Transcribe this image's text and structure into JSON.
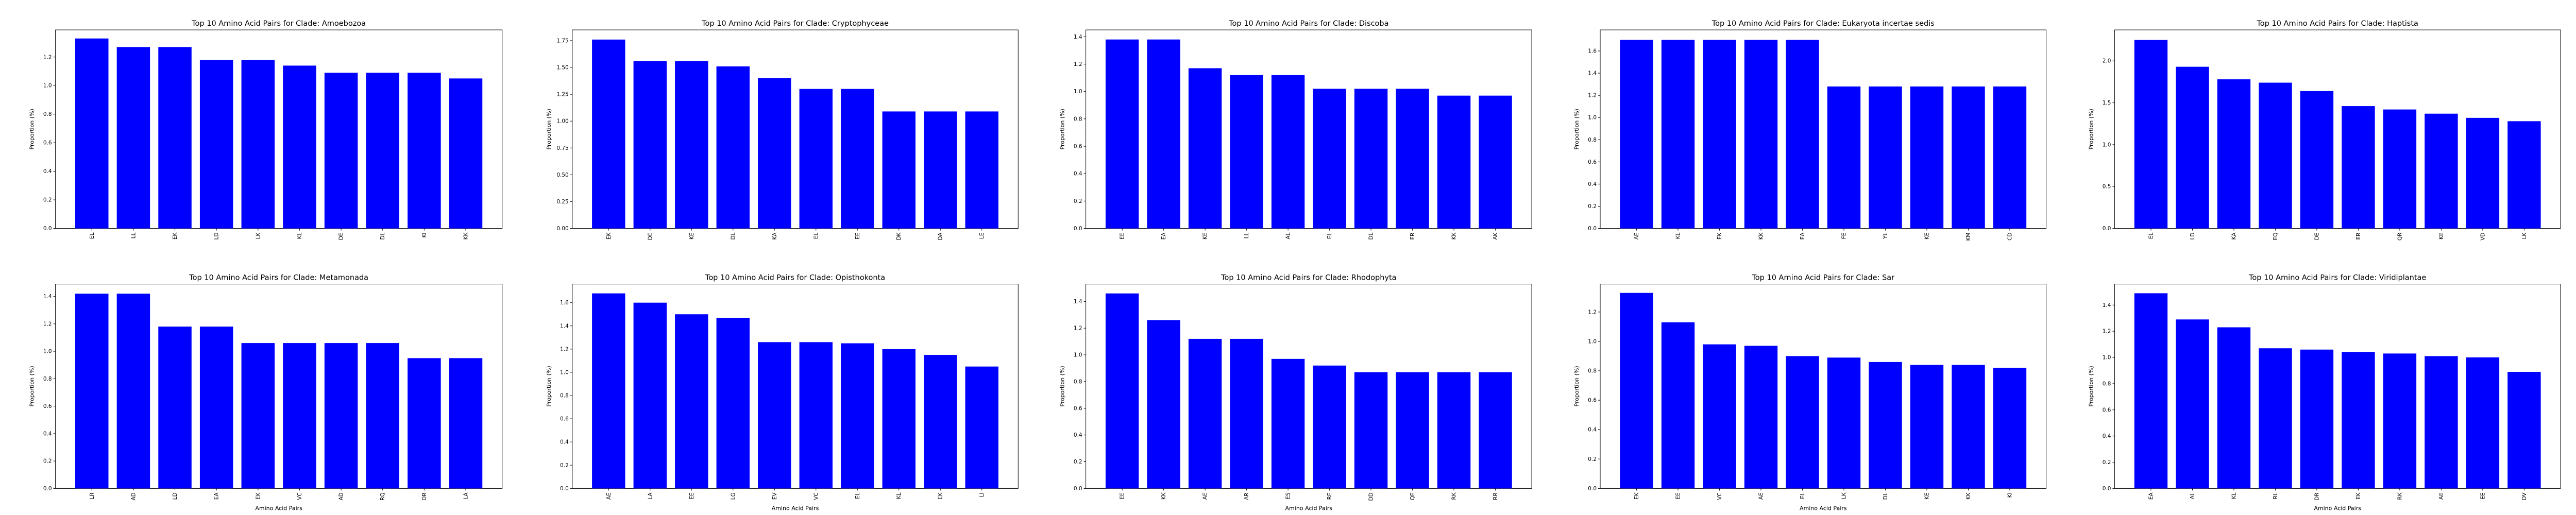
{
  "figure": {
    "bar_color": "#0000ff",
    "ylabel": "Proportion (%)",
    "xlabel": "Amino Acid Pairs"
  },
  "chart_data": [
    {
      "type": "bar",
      "title": "Top 10 Amino Acid Pairs for Clade: Amoebozoa",
      "categories": [
        "EL",
        "LL",
        "EK",
        "LD",
        "LK",
        "KL",
        "DE",
        "DL",
        "KI",
        "KK"
      ],
      "values": [
        1.33,
        1.27,
        1.27,
        1.18,
        1.18,
        1.14,
        1.09,
        1.09,
        1.09,
        1.05
      ],
      "ylim": [
        0,
        1.39
      ],
      "yticks": [
        "0.0",
        "0.2",
        "0.4",
        "0.6",
        "0.8",
        "1.0",
        "1.2"
      ],
      "ytick_values": [
        0,
        0.2,
        0.4,
        0.6,
        0.8,
        1.0,
        1.2
      ],
      "xlabel": "",
      "ylabel": "Proportion (%)"
    },
    {
      "type": "bar",
      "title": "Top 10 Amino Acid Pairs for Clade: Cryptophyceae",
      "categories": [
        "EK",
        "DE",
        "KE",
        "DL",
        "KA",
        "EL",
        "EE",
        "DK",
        "DA",
        "LE"
      ],
      "values": [
        1.76,
        1.56,
        1.56,
        1.51,
        1.4,
        1.3,
        1.3,
        1.09,
        1.09,
        1.09
      ],
      "ylim": [
        0,
        1.85
      ],
      "yticks": [
        "0.00",
        "0.25",
        "0.50",
        "0.75",
        "1.00",
        "1.25",
        "1.50",
        "1.75"
      ],
      "ytick_values": [
        0,
        0.25,
        0.5,
        0.75,
        1.0,
        1.25,
        1.5,
        1.75
      ],
      "xlabel": "",
      "ylabel": "Proportion (%)"
    },
    {
      "type": "bar",
      "title": "Top 10 Amino Acid Pairs for Clade: Discoba",
      "categories": [
        "EE",
        "EA",
        "KE",
        "LL",
        "AL",
        "EL",
        "DL",
        "ER",
        "KK",
        "AK"
      ],
      "values": [
        1.38,
        1.38,
        1.17,
        1.12,
        1.12,
        1.02,
        1.02,
        1.02,
        0.97,
        0.97
      ],
      "ylim": [
        0,
        1.45
      ],
      "yticks": [
        "0.0",
        "0.2",
        "0.4",
        "0.6",
        "0.8",
        "1.0",
        "1.2",
        "1.4"
      ],
      "ytick_values": [
        0,
        0.2,
        0.4,
        0.6,
        0.8,
        1.0,
        1.2,
        1.4
      ],
      "xlabel": "",
      "ylabel": "Proportion (%)"
    },
    {
      "type": "bar",
      "title": "Top 10 Amino Acid Pairs for Clade: Eukaryota incertae sedis",
      "categories": [
        "AE",
        "KL",
        "EK",
        "KK",
        "EA",
        "FE",
        "YL",
        "KE",
        "KM",
        "CD"
      ],
      "values": [
        1.7,
        1.7,
        1.7,
        1.7,
        1.7,
        1.28,
        1.28,
        1.28,
        1.28,
        1.28
      ],
      "ylim": [
        0,
        1.79
      ],
      "yticks": [
        "0.0",
        "0.2",
        "0.4",
        "0.6",
        "0.8",
        "1.0",
        "1.2",
        "1.4",
        "1.6"
      ],
      "ytick_values": [
        0,
        0.2,
        0.4,
        0.6,
        0.8,
        1.0,
        1.2,
        1.4,
        1.6
      ],
      "xlabel": "",
      "ylabel": "Proportion (%)"
    },
    {
      "type": "bar",
      "title": "Top 10 Amino Acid Pairs for Clade: Haptista",
      "categories": [
        "EL",
        "LD",
        "KA",
        "EQ",
        "DE",
        "ER",
        "QR",
        "KE",
        "VD",
        "LK"
      ],
      "values": [
        2.25,
        1.93,
        1.78,
        1.74,
        1.64,
        1.46,
        1.42,
        1.37,
        1.32,
        1.28
      ],
      "ylim": [
        0,
        2.37
      ],
      "yticks": [
        "0.0",
        "0.5",
        "1.0",
        "1.5",
        "2.0"
      ],
      "ytick_values": [
        0,
        0.5,
        1.0,
        1.5,
        2.0
      ],
      "xlabel": "",
      "ylabel": "Proportion (%)"
    },
    {
      "type": "bar",
      "title": "Top 10 Amino Acid Pairs for Clade: Metamonada",
      "categories": [
        "LR",
        "AD",
        "LD",
        "EA",
        "EK",
        "VC",
        "AD",
        "RQ",
        "DR",
        "LA"
      ],
      "values": [
        1.42,
        1.42,
        1.18,
        1.18,
        1.06,
        1.06,
        1.06,
        1.06,
        0.95,
        0.95
      ],
      "ylim": [
        0,
        1.49
      ],
      "yticks": [
        "0.0",
        "0.2",
        "0.4",
        "0.6",
        "0.8",
        "1.0",
        "1.2",
        "1.4"
      ],
      "ytick_values": [
        0,
        0.2,
        0.4,
        0.6,
        0.8,
        1.0,
        1.2,
        1.4
      ],
      "xlabel": "Amino Acid Pairs",
      "ylabel": "Proportion (%)"
    },
    {
      "type": "bar",
      "title": "Top 10 Amino Acid Pairs for Clade: Opisthokonta",
      "categories": [
        "AE",
        "LA",
        "EE",
        "LG",
        "EV",
        "VC",
        "EL",
        "KL",
        "EK",
        "LI"
      ],
      "values": [
        1.68,
        1.6,
        1.5,
        1.47,
        1.26,
        1.26,
        1.25,
        1.2,
        1.15,
        1.05
      ],
      "ylim": [
        0,
        1.76
      ],
      "yticks": [
        "0.0",
        "0.2",
        "0.4",
        "0.6",
        "0.8",
        "1.0",
        "1.2",
        "1.4",
        "1.6"
      ],
      "ytick_values": [
        0,
        0.2,
        0.4,
        0.6,
        0.8,
        1.0,
        1.2,
        1.4,
        1.6
      ],
      "xlabel": "Amino Acid Pairs",
      "ylabel": "Proportion (%)"
    },
    {
      "type": "bar",
      "title": "Top 10 Amino Acid Pairs for Clade: Rhodophyta",
      "categories": [
        "EE",
        "KK",
        "AE",
        "AR",
        "ES",
        "RE",
        "DD",
        "QE",
        "RK",
        "RR"
      ],
      "values": [
        1.46,
        1.26,
        1.12,
        1.12,
        0.97,
        0.92,
        0.87,
        0.87,
        0.87,
        0.87
      ],
      "ylim": [
        0,
        1.53
      ],
      "yticks": [
        "0.0",
        "0.2",
        "0.4",
        "0.6",
        "0.8",
        "1.0",
        "1.2",
        "1.4"
      ],
      "ytick_values": [
        0,
        0.2,
        0.4,
        0.6,
        0.8,
        1.0,
        1.2,
        1.4
      ],
      "xlabel": "Amino Acid Pairs",
      "ylabel": "Proportion (%)"
    },
    {
      "type": "bar",
      "title": "Top 10 Amino Acid Pairs for Clade: Sar",
      "categories": [
        "EK",
        "EE",
        "VC",
        "AE",
        "EL",
        "LK",
        "DL",
        "KE",
        "KK",
        "KI"
      ],
      "values": [
        1.33,
        1.13,
        0.98,
        0.97,
        0.9,
        0.89,
        0.86,
        0.84,
        0.84,
        0.82
      ],
      "ylim": [
        0,
        1.39
      ],
      "yticks": [
        "0.0",
        "0.2",
        "0.4",
        "0.6",
        "0.8",
        "1.0",
        "1.2"
      ],
      "ytick_values": [
        0,
        0.2,
        0.4,
        0.6,
        0.8,
        1.0,
        1.2
      ],
      "xlabel": "Amino Acid Pairs",
      "ylabel": "Proportion (%)"
    },
    {
      "type": "bar",
      "title": "Top 10 Amino Acid Pairs for Clade: Viridiplantae",
      "categories": [
        "EA",
        "AL",
        "KL",
        "RL",
        "DR",
        "EK",
        "RK",
        "AE",
        "EE",
        "DV"
      ],
      "values": [
        1.49,
        1.29,
        1.23,
        1.07,
        1.06,
        1.04,
        1.03,
        1.01,
        1.0,
        0.89
      ],
      "ylim": [
        0,
        1.56
      ],
      "yticks": [
        "0.0",
        "0.2",
        "0.4",
        "0.6",
        "0.8",
        "1.0",
        "1.2",
        "1.4"
      ],
      "ytick_values": [
        0,
        0.2,
        0.4,
        0.6,
        0.8,
        1.0,
        1.2,
        1.4
      ],
      "xlabel": "Amino Acid Pairs",
      "ylabel": "Proportion (%)"
    }
  ]
}
